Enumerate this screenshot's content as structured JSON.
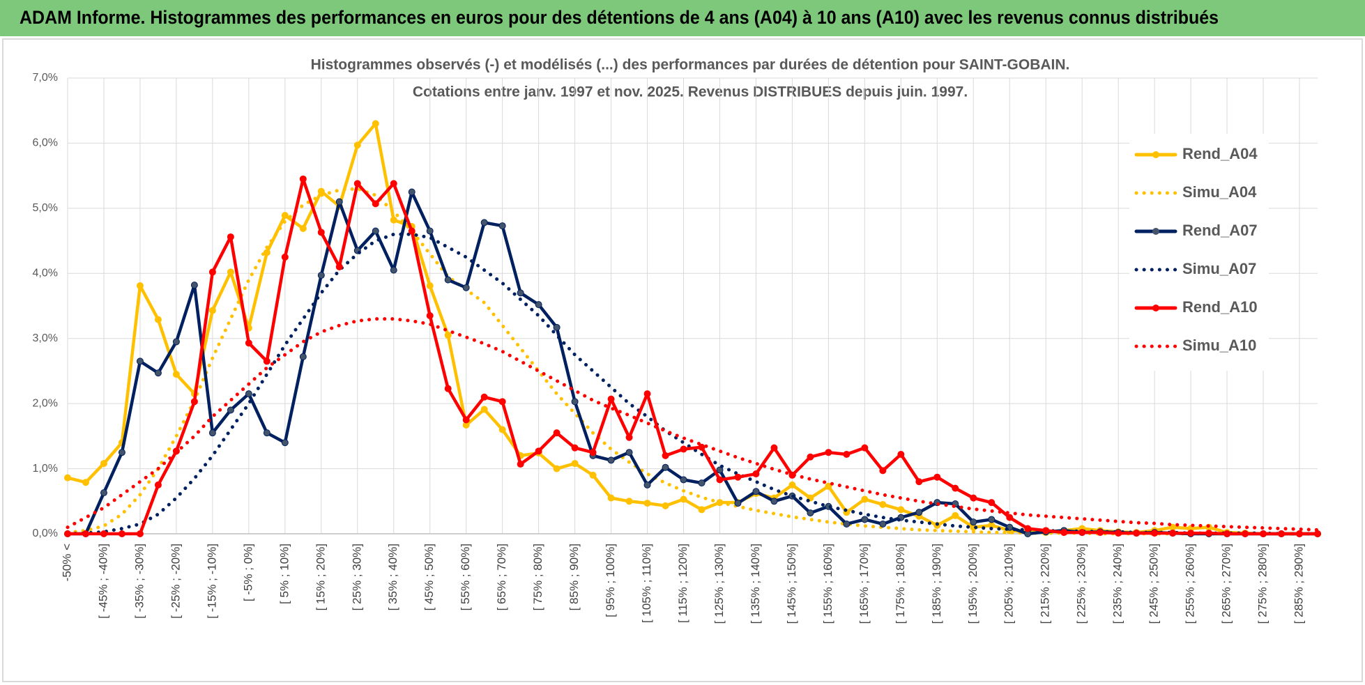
{
  "header": "ADAM Informe. Histogrammes des performances en euros pour des détentions de 4 ans (A04) à 10 ans (A10) avec les revenus connus distribués",
  "chart_data": {
    "type": "line",
    "title": "Histogrammes observés (-) et modélisés (...) des performances par durées de détention pour SAINT-GOBAIN.",
    "subtitle": "Cotations entre janv. 1997 et nov. 2025. Revenus DISTRIBUES depuis juin. 1997.",
    "categories": [
      "-50% <",
      null,
      "[ -45% ; -40%]",
      null,
      "[ -35% ; -30%]",
      null,
      "[ -25% ; -20%]",
      null,
      "[ -15% ; -10%]",
      null,
      "[ -5% ; 0%]",
      null,
      "[ 5% ; 10%]",
      null,
      "[ 15% ; 20%]",
      null,
      "[ 25% ; 30%]",
      null,
      "[ 35% ; 40%]",
      null,
      "[ 45% ; 50%]",
      null,
      "[ 55% ; 60%]",
      null,
      "[ 65% ; 70%]",
      null,
      "[ 75% ; 80%]",
      null,
      "[ 85% ; 90%]",
      null,
      "[ 95% ; 100%]",
      null,
      "[ 105% ; 110%]",
      null,
      "[ 115% ; 120%]",
      null,
      "[ 125% ; 130%]",
      null,
      "[ 135% ; 140%]",
      null,
      "[ 145% ; 150%]",
      null,
      "[ 155% ; 160%]",
      null,
      "[ 165% ; 170%]",
      null,
      "[ 175% ; 180%]",
      null,
      "[ 185% ; 190%]",
      null,
      "[ 195% ; 200%]",
      null,
      "[ 205% ; 210%]",
      null,
      "[ 215% ; 220%]",
      null,
      "[ 225% ; 230%]",
      null,
      "[ 235% ; 240%]",
      null,
      "[ 245% ; 250%]",
      null,
      "[ 255% ; 260%]",
      null,
      "[ 265% ; 270%]",
      null,
      "[ 275% ; 280%]",
      null,
      "[ 285% ; 290%]",
      null
    ],
    "series": [
      {
        "name": "Rend_A04",
        "color": "#FFC000",
        "style": "solid",
        "values": [
          0.86,
          0.79,
          1.08,
          1.4,
          3.81,
          3.29,
          2.45,
          2.15,
          3.43,
          4.02,
          3.16,
          4.32,
          4.89,
          4.69,
          5.26,
          5.03,
          5.97,
          6.3,
          4.82,
          4.72,
          3.81,
          3.05,
          1.67,
          1.91,
          1.6,
          1.2,
          1.24,
          1.0,
          1.08,
          0.9,
          0.55,
          0.5,
          0.47,
          0.43,
          0.53,
          0.37,
          0.48,
          0.48,
          0.62,
          0.55,
          0.75,
          0.55,
          0.73,
          0.33,
          0.53,
          0.45,
          0.37,
          0.27,
          0.13,
          0.28,
          0.1,
          0.13,
          0.05,
          0.03,
          0.02,
          0.05,
          0.08,
          0.05,
          0.03,
          0.02,
          0.05,
          0.1,
          0.08,
          0.1,
          0.02,
          0.01,
          0,
          0,
          0,
          0
        ]
      },
      {
        "name": "Simu_A04",
        "color": "#FFC000",
        "style": "dotted",
        "values": [
          0.02,
          0.05,
          0.12,
          0.3,
          0.6,
          1.0,
          1.5,
          2.05,
          2.7,
          3.3,
          3.9,
          4.4,
          4.8,
          5.05,
          5.2,
          5.28,
          5.3,
          5.2,
          4.95,
          4.65,
          4.3,
          3.95,
          3.75,
          3.55,
          3.2,
          2.85,
          2.5,
          2.15,
          1.85,
          1.55,
          1.3,
          1.1,
          0.92,
          0.78,
          0.66,
          0.56,
          0.48,
          0.42,
          0.36,
          0.31,
          0.26,
          0.22,
          0.18,
          0.15,
          0.12,
          0.1,
          0.08,
          0.06,
          0.05,
          0.04,
          0.03,
          0.02,
          0.02,
          0.01,
          0.01,
          0.01,
          0.01,
          0,
          0,
          0,
          0,
          0,
          0,
          0,
          0,
          0,
          0,
          0,
          0,
          0
        ]
      },
      {
        "name": "Rend_A07",
        "color": "#002060",
        "style": "solid",
        "values": [
          0,
          0,
          0.63,
          1.25,
          2.65,
          2.47,
          2.95,
          3.82,
          1.55,
          1.9,
          2.15,
          1.55,
          1.4,
          2.72,
          3.97,
          5.1,
          4.35,
          4.65,
          4.05,
          5.25,
          4.65,
          3.9,
          3.78,
          4.78,
          4.73,
          3.7,
          3.52,
          3.17,
          2.03,
          1.2,
          1.13,
          1.25,
          0.75,
          1.02,
          0.83,
          0.78,
          0.98,
          0.47,
          0.65,
          0.5,
          0.58,
          0.32,
          0.42,
          0.15,
          0.22,
          0.15,
          0.25,
          0.33,
          0.48,
          0.46,
          0.18,
          0.22,
          0.1,
          0,
          0.03,
          0.05,
          0.02,
          0.03,
          0.02,
          0.01,
          0.02,
          0.01,
          0,
          0,
          0,
          0,
          0,
          0,
          0,
          0
        ]
      },
      {
        "name": "Simu_A07",
        "color": "#002060",
        "style": "dotted",
        "values": [
          0,
          0.01,
          0.03,
          0.08,
          0.15,
          0.3,
          0.55,
          0.85,
          1.2,
          1.6,
          2.0,
          2.45,
          2.9,
          3.3,
          3.7,
          4.05,
          4.3,
          4.5,
          4.6,
          4.6,
          4.55,
          4.4,
          4.25,
          4.05,
          3.85,
          3.6,
          3.35,
          3.05,
          2.75,
          2.5,
          2.25,
          2.0,
          1.8,
          1.58,
          1.4,
          1.22,
          1.05,
          0.92,
          0.8,
          0.68,
          0.58,
          0.5,
          0.42,
          0.36,
          0.3,
          0.25,
          0.21,
          0.18,
          0.15,
          0.12,
          0.1,
          0.08,
          0.07,
          0.06,
          0.05,
          0.04,
          0.04,
          0.03,
          0.03,
          0.02,
          0.02,
          0.02,
          0.01,
          0.01,
          0.01,
          0.01,
          0.01,
          0,
          0,
          0
        ]
      },
      {
        "name": "Rend_A10",
        "color": "#FF0000",
        "style": "solid",
        "values": [
          0,
          0,
          0,
          0,
          0,
          0.75,
          1.27,
          2.03,
          4.02,
          4.56,
          2.93,
          2.65,
          4.25,
          5.45,
          4.63,
          4.1,
          5.38,
          5.07,
          5.38,
          4.65,
          3.35,
          2.23,
          1.75,
          2.1,
          2.03,
          1.07,
          1.27,
          1.55,
          1.32,
          1.25,
          2.07,
          1.48,
          2.15,
          1.2,
          1.3,
          1.33,
          0.83,
          0.87,
          0.92,
          1.32,
          0.9,
          1.18,
          1.25,
          1.22,
          1.32,
          0.97,
          1.22,
          0.8,
          0.87,
          0.7,
          0.55,
          0.48,
          0.25,
          0.08,
          0.05,
          0.02,
          0.02,
          0.02,
          0.01,
          0.01,
          0.01,
          0.01,
          0.01,
          0.01,
          0,
          0,
          0,
          0,
          0,
          0
        ]
      },
      {
        "name": "Simu_A10",
        "color": "#FF0000",
        "style": "dotted",
        "values": [
          0.1,
          0.25,
          0.4,
          0.6,
          0.8,
          1.0,
          1.25,
          1.5,
          1.8,
          2.05,
          2.3,
          2.55,
          2.75,
          2.95,
          3.1,
          3.2,
          3.27,
          3.3,
          3.3,
          3.27,
          3.22,
          3.12,
          3.02,
          2.92,
          2.8,
          2.65,
          2.5,
          2.35,
          2.2,
          2.05,
          1.93,
          1.82,
          1.7,
          1.58,
          1.47,
          1.37,
          1.27,
          1.17,
          1.08,
          0.99,
          0.91,
          0.84,
          0.78,
          0.72,
          0.66,
          0.6,
          0.55,
          0.5,
          0.46,
          0.42,
          0.38,
          0.35,
          0.32,
          0.29,
          0.27,
          0.25,
          0.23,
          0.21,
          0.19,
          0.17,
          0.16,
          0.14,
          0.13,
          0.12,
          0.11,
          0.1,
          0.09,
          0.08,
          0.07,
          0.06
        ]
      }
    ],
    "ylim": [
      0,
      7
    ],
    "yticks": [
      {
        "value": 0,
        "label": "0,0%"
      },
      {
        "value": 1,
        "label": "1,0%"
      },
      {
        "value": 2,
        "label": "2,0%"
      },
      {
        "value": 3,
        "label": "3,0%"
      },
      {
        "value": 4,
        "label": "4,0%"
      },
      {
        "value": 5,
        "label": "5,0%"
      },
      {
        "value": 6,
        "label": "6,0%"
      },
      {
        "value": 7,
        "label": "7,0%"
      }
    ],
    "grid": true,
    "legend": "right"
  }
}
